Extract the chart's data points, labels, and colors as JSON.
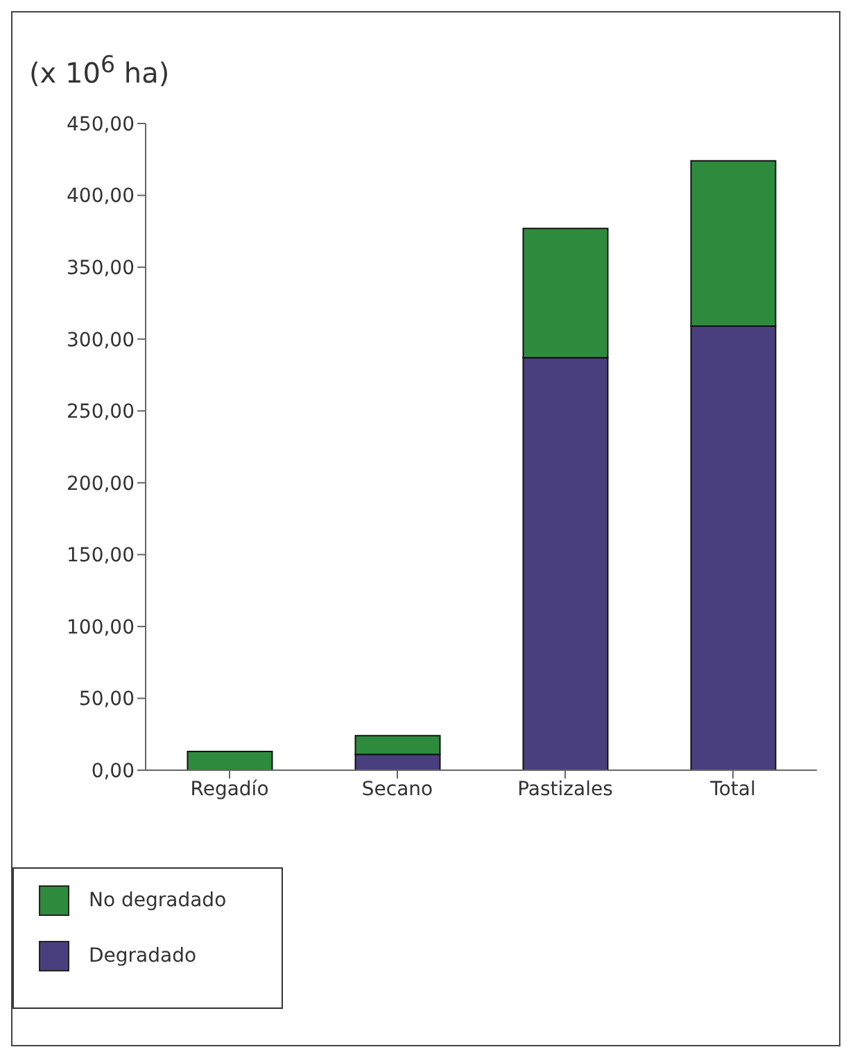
{
  "chart_data": {
    "type": "bar",
    "ylabel": "(x 10$^{6}$ ha)",
    "categories": [
      "Regadío",
      "Secano",
      "Pastizales",
      "Total"
    ],
    "stacked": true,
    "series": [
      {
        "name": "Degradado",
        "color": "#4a3f7e",
        "values": [
          0,
          11,
          287,
          309
        ]
      },
      {
        "name": "No degradado",
        "color": "#2e8b3e",
        "values": [
          13,
          13,
          90,
          115
        ]
      }
    ],
    "ylim": [
      0,
      450
    ],
    "yticks": [
      {
        "value": 0,
        "label": "0,00"
      },
      {
        "value": 50,
        "label": "50,00"
      },
      {
        "value": 100,
        "label": "100,00"
      },
      {
        "value": 150,
        "label": "150,00"
      },
      {
        "value": 200,
        "label": "200,00"
      },
      {
        "value": 250,
        "label": "250,00"
      },
      {
        "value": 300,
        "label": "300,00"
      },
      {
        "value": 350,
        "label": "350,00"
      },
      {
        "value": 400,
        "label": "400,00"
      },
      {
        "value": 450,
        "label": "450,00"
      }
    ],
    "legend": "bottom"
  }
}
